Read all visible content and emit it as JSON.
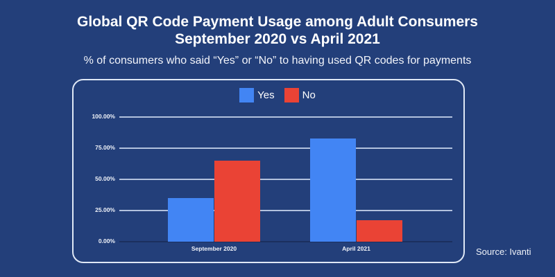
{
  "header": {
    "title_line1": "Global QR Code Payment Usage among Adult Consumers",
    "title_line2": "September 2020 vs April 2021",
    "subtitle": "% of consumers who said “Yes” or “No” to having used QR codes for payments"
  },
  "legend": {
    "items": [
      {
        "label": "Yes",
        "color": "#4285f4"
      },
      {
        "label": "No",
        "color": "#ea4335"
      }
    ]
  },
  "axis": {
    "y_ticks": [
      "100.00%",
      "75.00%",
      "50.00%",
      "25.00%",
      "0.00%"
    ],
    "x_ticks": [
      "September 2020",
      "April 2021"
    ]
  },
  "source": "Source: Ivanti",
  "colors": {
    "background": "#233f7a",
    "yes": "#4285f4",
    "no": "#ea4335",
    "panel_border": "#dfe8f6"
  },
  "chart_data": {
    "type": "bar",
    "title": "Global QR Code Payment Usage among Adult Consumers September 2020 vs April 2021",
    "subtitle": "% of consumers who said “Yes” or “No” to having used QR codes for payments",
    "categories": [
      "September 2020",
      "April 2021"
    ],
    "series": [
      {
        "name": "Yes",
        "color": "#4285f4",
        "values": [
          35,
          83
        ]
      },
      {
        "name": "No",
        "color": "#ea4335",
        "values": [
          65,
          17
        ]
      }
    ],
    "xlabel": "",
    "ylabel": "",
    "ylim": [
      0,
      100
    ],
    "y_tick_format": "0.00%",
    "grid": true,
    "legend_position": "top",
    "annotations": [
      "Source: Ivanti"
    ]
  }
}
